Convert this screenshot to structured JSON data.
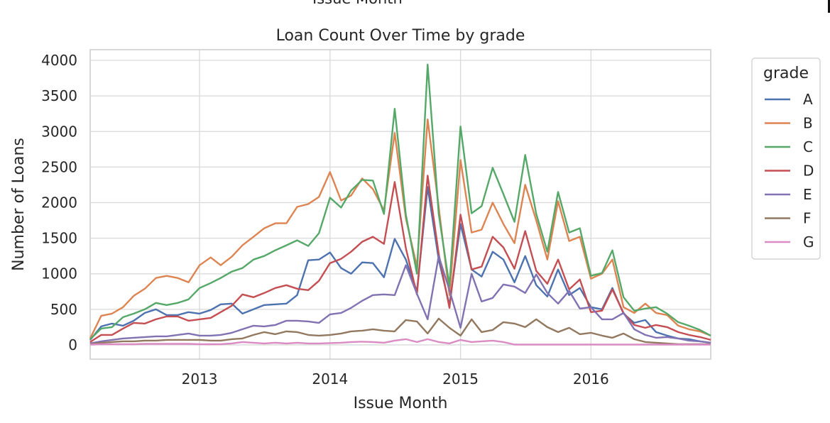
{
  "figure_header_cut": "Issue Month",
  "chart_data": {
    "type": "line",
    "title": "Loan Count Over Time by grade",
    "xlabel": "Issue Month",
    "ylabel": "Number of Loans",
    "ylim": [
      -200,
      4150
    ],
    "yticks": [
      0,
      500,
      1000,
      1500,
      2000,
      2500,
      3000,
      3500,
      4000
    ],
    "xlim": [
      "2012-03-01",
      "2016-12-01"
    ],
    "xticks": [
      "2013",
      "2014",
      "2015",
      "2016"
    ],
    "grid": true,
    "legend": {
      "title": "grade",
      "placement": "outside-right"
    },
    "x": [
      "2012-03",
      "2012-04",
      "2012-05",
      "2012-06",
      "2012-07",
      "2012-08",
      "2012-09",
      "2012-10",
      "2012-11",
      "2012-12",
      "2013-01",
      "2013-02",
      "2013-03",
      "2013-04",
      "2013-05",
      "2013-06",
      "2013-07",
      "2013-08",
      "2013-09",
      "2013-10",
      "2013-11",
      "2013-12",
      "2014-01",
      "2014-02",
      "2014-03",
      "2014-04",
      "2014-05",
      "2014-06",
      "2014-07",
      "2014-08",
      "2014-09",
      "2014-10",
      "2014-11",
      "2014-12",
      "2015-01",
      "2015-02",
      "2015-03",
      "2015-04",
      "2015-05",
      "2015-06",
      "2015-07",
      "2015-08",
      "2015-09",
      "2015-10",
      "2015-11",
      "2015-12",
      "2016-01",
      "2016-02",
      "2016-03",
      "2016-04",
      "2016-05",
      "2016-06",
      "2016-07",
      "2016-08",
      "2016-09",
      "2016-10",
      "2016-11",
      "2016-12"
    ],
    "series": [
      {
        "name": "A",
        "color": "#4c72b0",
        "values": [
          70,
          260,
          300,
          270,
          340,
          450,
          500,
          420,
          420,
          460,
          440,
          490,
          570,
          580,
          440,
          500,
          560,
          570,
          580,
          700,
          1190,
          1200,
          1300,
          1080,
          1000,
          1160,
          1150,
          950,
          1490,
          1200,
          750,
          2220,
          1200,
          560,
          1700,
          1060,
          960,
          1310,
          1200,
          880,
          1250,
          840,
          680,
          1060,
          700,
          800,
          530,
          500,
          800,
          440,
          310,
          350,
          180,
          130,
          90,
          80,
          50,
          30
        ]
      },
      {
        "name": "B",
        "color": "#dd8452",
        "values": [
          90,
          410,
          440,
          530,
          690,
          790,
          940,
          970,
          940,
          880,
          1120,
          1230,
          1120,
          1240,
          1400,
          1520,
          1640,
          1710,
          1710,
          1940,
          1980,
          2080,
          2430,
          2030,
          2100,
          2340,
          2190,
          1890,
          2980,
          1780,
          1100,
          3170,
          1940,
          700,
          2600,
          1580,
          1620,
          2000,
          1700,
          1430,
          2250,
          1750,
          1200,
          2020,
          1460,
          1520,
          930,
          1000,
          1200,
          530,
          450,
          580,
          450,
          420,
          270,
          220,
          190,
          130
        ]
      },
      {
        "name": "C",
        "color": "#55a868",
        "values": [
          80,
          230,
          250,
          390,
          440,
          500,
          590,
          560,
          590,
          640,
          800,
          870,
          940,
          1030,
          1080,
          1200,
          1250,
          1330,
          1400,
          1470,
          1390,
          1570,
          2070,
          1930,
          2170,
          2320,
          2310,
          1840,
          3320,
          1830,
          1000,
          3940,
          1840,
          830,
          3070,
          1850,
          1950,
          2490,
          2120,
          1730,
          2670,
          1840,
          1310,
          2150,
          1580,
          1640,
          970,
          1010,
          1330,
          670,
          480,
          510,
          530,
          440,
          320,
          270,
          210,
          130
        ]
      },
      {
        "name": "D",
        "color": "#c44e52",
        "values": [
          40,
          140,
          140,
          230,
          310,
          300,
          360,
          400,
          400,
          340,
          360,
          380,
          460,
          550,
          710,
          670,
          730,
          800,
          840,
          790,
          770,
          900,
          1150,
          1210,
          1310,
          1450,
          1520,
          1420,
          2290,
          1360,
          710,
          2380,
          1280,
          520,
          1830,
          1060,
          1100,
          1520,
          1370,
          1070,
          1600,
          1040,
          860,
          1200,
          780,
          920,
          460,
          480,
          780,
          450,
          280,
          240,
          280,
          250,
          180,
          140,
          110,
          70
        ]
      },
      {
        "name": "E",
        "color": "#8172b3",
        "values": [
          20,
          50,
          70,
          90,
          100,
          110,
          120,
          120,
          140,
          160,
          130,
          130,
          140,
          170,
          220,
          270,
          260,
          280,
          340,
          340,
          330,
          310,
          430,
          450,
          520,
          620,
          700,
          710,
          700,
          1120,
          720,
          360,
          1250,
          770,
          240,
          1000,
          610,
          660,
          850,
          820,
          730,
          990,
          730,
          580,
          760,
          510,
          530,
          360,
          360,
          450,
          220,
          140,
          100,
          110,
          90,
          60,
          50,
          30
        ]
      },
      {
        "name": "F",
        "color": "#937860",
        "values": [
          10,
          30,
          40,
          50,
          50,
          60,
          60,
          70,
          70,
          70,
          70,
          60,
          60,
          80,
          90,
          140,
          180,
          150,
          190,
          180,
          140,
          130,
          140,
          160,
          190,
          200,
          220,
          200,
          190,
          350,
          330,
          160,
          370,
          240,
          130,
          360,
          180,
          210,
          320,
          300,
          250,
          360,
          250,
          180,
          240,
          150,
          170,
          130,
          100,
          160,
          80,
          40,
          30,
          20,
          10,
          10,
          10,
          10
        ]
      },
      {
        "name": "G",
        "color": "#da8bc3",
        "values": [
          5,
          10,
          10,
          10,
          10,
          15,
          15,
          15,
          15,
          15,
          10,
          10,
          10,
          20,
          40,
          30,
          20,
          30,
          20,
          30,
          20,
          20,
          25,
          30,
          40,
          45,
          40,
          30,
          60,
          80,
          40,
          80,
          40,
          20,
          70,
          40,
          50,
          60,
          40,
          5,
          5,
          5,
          5,
          5,
          5,
          5,
          5,
          5,
          5,
          5,
          5,
          5,
          5,
          5,
          5,
          5,
          5,
          5
        ]
      }
    ]
  }
}
